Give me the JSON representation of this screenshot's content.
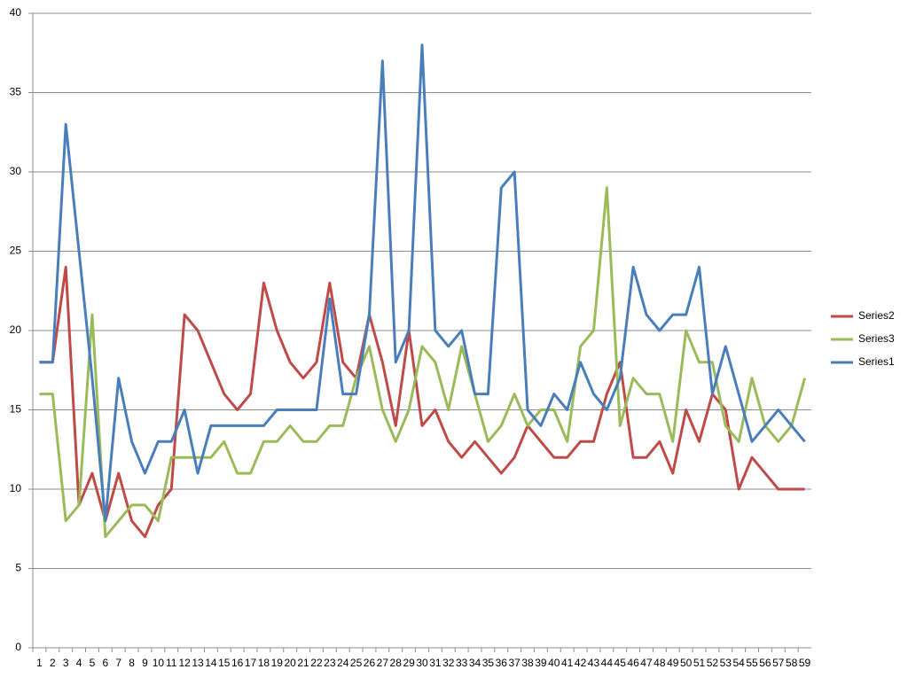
{
  "chart_data": {
    "type": "line",
    "categories": [
      1,
      2,
      3,
      4,
      5,
      6,
      7,
      8,
      9,
      10,
      11,
      12,
      13,
      14,
      15,
      16,
      17,
      18,
      19,
      20,
      21,
      22,
      23,
      24,
      25,
      26,
      27,
      28,
      29,
      30,
      31,
      32,
      33,
      34,
      35,
      36,
      37,
      38,
      39,
      40,
      41,
      42,
      43,
      44,
      45,
      46,
      47,
      48,
      49,
      50,
      51,
      52,
      53,
      54,
      55,
      56,
      57,
      58,
      59
    ],
    "series": [
      {
        "name": "Series2",
        "color": "#be4b48",
        "values": [
          18,
          18,
          24,
          9,
          11,
          8,
          11,
          8,
          7,
          9,
          10,
          21,
          20,
          18,
          16,
          15,
          16,
          23,
          20,
          18,
          17,
          18,
          23,
          18,
          17,
          21,
          18,
          14,
          20,
          14,
          15,
          13,
          12,
          13,
          12,
          11,
          12,
          14,
          13,
          12,
          12,
          13,
          13,
          16,
          18,
          12,
          12,
          13,
          11,
          15,
          13,
          16,
          15,
          10,
          12,
          11,
          10,
          10,
          10
        ]
      },
      {
        "name": "Series3",
        "color": "#9bbb59",
        "values": [
          16,
          16,
          8,
          9,
          21,
          7,
          8,
          9,
          9,
          8,
          12,
          12,
          12,
          12,
          13,
          11,
          11,
          13,
          13,
          14,
          13,
          13,
          14,
          14,
          17,
          19,
          15,
          13,
          15,
          19,
          18,
          15,
          19,
          16,
          13,
          14,
          16,
          14,
          15,
          15,
          13,
          19,
          20,
          29,
          14,
          17,
          16,
          16,
          13,
          20,
          18,
          18,
          14,
          13,
          17,
          14,
          13,
          14,
          17
        ]
      },
      {
        "name": "Series1",
        "color": "#4a7ebb",
        "values": [
          18,
          18,
          33,
          25,
          17,
          8,
          17,
          13,
          11,
          13,
          13,
          15,
          11,
          14,
          14,
          14,
          14,
          14,
          15,
          15,
          15,
          15,
          22,
          16,
          16,
          21,
          37,
          18,
          20,
          38,
          20,
          19,
          20,
          16,
          16,
          29,
          30,
          15,
          14,
          16,
          15,
          18,
          16,
          15,
          17,
          24,
          21,
          20,
          21,
          21,
          24,
          16,
          19,
          16,
          13,
          14,
          15,
          14,
          13
        ]
      }
    ],
    "ylim": [
      0,
      40
    ],
    "yticks": [
      0,
      5,
      10,
      15,
      20,
      25,
      30,
      35,
      40
    ],
    "grid": true,
    "legend": "right"
  }
}
